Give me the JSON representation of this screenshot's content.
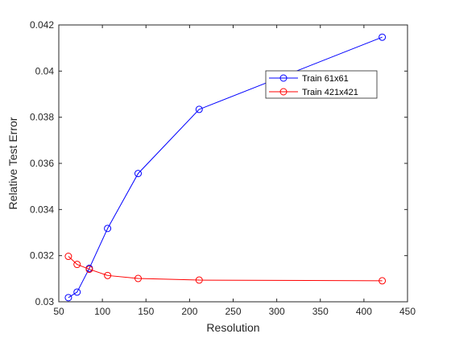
{
  "chart_data": {
    "type": "line",
    "title": "",
    "xlabel": "Resolution",
    "ylabel": "Relative Test Error",
    "xlim": [
      50,
      450
    ],
    "ylim": [
      0.03,
      0.042
    ],
    "xticks": [
      50,
      100,
      150,
      200,
      250,
      300,
      350,
      400,
      450
    ],
    "yticks": [
      0.03,
      0.032,
      0.034,
      0.036,
      0.038,
      0.04,
      0.042
    ],
    "xtick_labels": [
      "50",
      "100",
      "150",
      "200",
      "250",
      "300",
      "350",
      "400",
      "450"
    ],
    "ytick_labels": [
      "0.03",
      "0.032",
      "0.034",
      "0.036",
      "0.038",
      "0.04",
      "0.042"
    ],
    "grid": false,
    "legend_position": "top-right",
    "series": [
      {
        "name": "Train 61x61",
        "color": "#0000ff",
        "marker": "circle",
        "x": [
          61,
          71,
          85,
          106,
          141,
          211,
          421
        ],
        "y": [
          0.03018,
          0.03042,
          0.03145,
          0.03318,
          0.03556,
          0.03834,
          0.04147
        ]
      },
      {
        "name": "Train 421x421",
        "color": "#ff0000",
        "marker": "circle",
        "x": [
          61,
          71,
          85,
          106,
          141,
          211,
          421
        ],
        "y": [
          0.03197,
          0.03162,
          0.03141,
          0.03114,
          0.03101,
          0.03094,
          0.03091
        ]
      }
    ]
  }
}
